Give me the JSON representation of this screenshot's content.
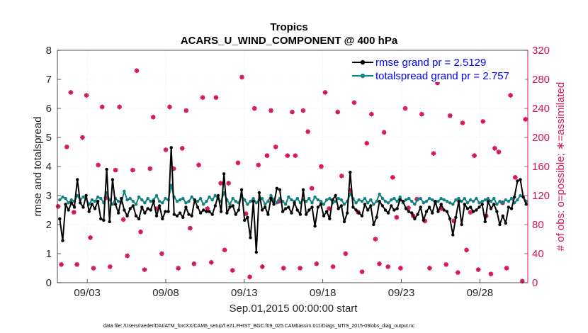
{
  "chart_data": {
    "type": "line",
    "title": "Tropics",
    "subtitle": "ACARS_U_WIND_COMPONENT @ 400 hPa",
    "xlabel": "Sep.01,2015 00:00:00 start",
    "ylabel_left": "rmse and totalspread",
    "ylabel_right": "# of obs: o=possible; ∗=assimilated",
    "footnote": "data file: /Users/raeder/DAI/ATM_forcXX/CAM6_setup/f.e21.FHIST_BGC.f09_025.CAM6assim.011/Diags_NTrS_2015-09/obs_diag_output.nc",
    "x_tick_labels": [
      "09/03",
      "09/08",
      "09/13",
      "09/18",
      "09/23",
      "09/28"
    ],
    "x_tick_days": [
      3,
      8,
      13,
      18,
      23,
      28
    ],
    "xlim_days": [
      1.1,
      31.05
    ],
    "ylim_left": [
      0,
      8
    ],
    "yticks_left": [
      "0",
      "1",
      "2",
      "3",
      "4",
      "5",
      "6",
      "7",
      "8"
    ],
    "ylim_right": [
      0,
      320
    ],
    "yticks_right": [
      "0",
      "40",
      "80",
      "120",
      "160",
      "200",
      "240",
      "280",
      "320"
    ],
    "legend_position": "top-right",
    "colors": {
      "rmse": "#000000",
      "spread": "#118080",
      "obs": "#d4145a"
    },
    "series": [
      {
        "name": "rmse grand pr = 2.5129",
        "axis": "left",
        "values": [
          2.2,
          1.45,
          2.7,
          2.5,
          2.75,
          2.6,
          3.55,
          2.75,
          2.6,
          3.0,
          2.45,
          2.7,
          2.55,
          2.8,
          2.2,
          2.15,
          3.9,
          2.1,
          3.55,
          2.7,
          2.4,
          2.9,
          2.5,
          2.3,
          2.55,
          2.65,
          2.3,
          2.2,
          2.6,
          2.4,
          2.55,
          2.5,
          2.8,
          2.3,
          2.65,
          2.2,
          2.45,
          2.45,
          4.65,
          2.35,
          2.3,
          2.4,
          2.25,
          2.6,
          2.35,
          2.3,
          2.85,
          2.6,
          2.4,
          2.5,
          2.45,
          2.45,
          2.35,
          2.65,
          3.0,
          2.45,
          3.75,
          2.4,
          2.6,
          2.65,
          2.35,
          2.5,
          3.2,
          2.15,
          2.25,
          1.55,
          2.8,
          1.05,
          3.1,
          2.5,
          2.6,
          2.35,
          2.9,
          2.7,
          3.25,
          3.2,
          2.45,
          2.55,
          2.6,
          2.4,
          2.75,
          2.5,
          2.35,
          3.2,
          2.35,
          2.5,
          2.6,
          1.95,
          2.6,
          2.7,
          2.3,
          2.45,
          2.2,
          2.85,
          3.0,
          2.55,
          2.65,
          2.1,
          2.4,
          3.8,
          2.6,
          2.5,
          2.4,
          2.3,
          2.7,
          2.5,
          2.65,
          2.0,
          2.25,
          2.8,
          2.65,
          2.5,
          2.4,
          2.65,
          2.5,
          2.55,
          2.85,
          2.8,
          2.55,
          2.45,
          2.4,
          2.2,
          2.35,
          2.6,
          2.15,
          2.45,
          2.6,
          2.4,
          2.8,
          2.45,
          2.7,
          2.5,
          2.45,
          2.2,
          1.65,
          2.25,
          2.8,
          2.0,
          2.7,
          2.55,
          2.6,
          2.45,
          2.5,
          2.6,
          2.7,
          2.1,
          2.8,
          2.55,
          2.7,
          2.45,
          2.0,
          2.3,
          2.05,
          2.6,
          2.55,
          2.95,
          3.5,
          3.55,
          2.95,
          2.7
        ]
      },
      {
        "name": "totalspread grand pr = 2.757",
        "axis": "left",
        "values": [
          2.85,
          2.95,
          2.9,
          2.75,
          2.85,
          2.8,
          3.0,
          2.85,
          2.95,
          2.9,
          2.7,
          2.85,
          2.8,
          2.95,
          2.9,
          2.75,
          3.1,
          2.85,
          2.7,
          2.9,
          2.8,
          2.75,
          3.15,
          2.85,
          2.9,
          2.8,
          2.7,
          2.95,
          2.85,
          2.75,
          2.9,
          2.8,
          2.85,
          3.0,
          2.8,
          2.75,
          2.9,
          2.85,
          3.35,
          2.95,
          2.8,
          2.85,
          2.9,
          2.75,
          2.8,
          2.95,
          2.85,
          2.8,
          2.9,
          2.7,
          2.8,
          2.95,
          2.85,
          3.0,
          2.9,
          2.8,
          3.1,
          2.85,
          2.7,
          2.9,
          2.8,
          2.75,
          3.0,
          2.85,
          2.7,
          2.8,
          2.9,
          2.75,
          2.85,
          2.9,
          2.7,
          2.8,
          3.0,
          2.85,
          2.75,
          2.9,
          2.8,
          2.7,
          2.95,
          2.85,
          2.8,
          2.9,
          2.75,
          2.85,
          2.8,
          2.9,
          2.75,
          2.95,
          2.85,
          2.8,
          2.7,
          2.85,
          2.9,
          2.75,
          2.8,
          2.9,
          2.85,
          2.7,
          2.8,
          3.05,
          2.9,
          2.75,
          2.85,
          2.8,
          2.9,
          2.75,
          2.85,
          2.7,
          2.8,
          3.05,
          2.9,
          2.8,
          2.75,
          2.85,
          2.9,
          2.8,
          2.95,
          2.75,
          2.85,
          2.9,
          2.8,
          2.7,
          2.85,
          2.9,
          2.75,
          2.8,
          2.9,
          2.85,
          2.75,
          2.8,
          2.9,
          2.85,
          2.8,
          2.75,
          2.7,
          2.85,
          2.9,
          2.8,
          2.9,
          2.75,
          2.85,
          2.8,
          2.9,
          2.75,
          2.8,
          2.85,
          2.9,
          2.8,
          2.9,
          2.7,
          2.8,
          2.75,
          2.85,
          2.8,
          2.9,
          2.75,
          2.85,
          3.0,
          2.95,
          2.8
        ]
      },
      {
        "name": "# obs possible/assimilated",
        "axis": "right",
        "style": "markers",
        "points": [
          [
            1.15,
            105
          ],
          [
            1.35,
            25
          ],
          [
            1.7,
            187
          ],
          [
            1.95,
            262
          ],
          [
            2.15,
            97
          ],
          [
            2.35,
            25
          ],
          [
            2.7,
            200
          ],
          [
            2.95,
            258
          ],
          [
            3.2,
            62
          ],
          [
            3.4,
            20
          ],
          [
            3.7,
            162
          ],
          [
            3.95,
            242
          ],
          [
            4.2,
            117
          ],
          [
            4.45,
            22
          ],
          [
            4.8,
            155
          ],
          [
            5.05,
            242
          ],
          [
            5.3,
            87
          ],
          [
            5.55,
            37
          ],
          [
            5.9,
            155
          ],
          [
            6.15,
            292
          ],
          [
            6.4,
            70
          ],
          [
            6.65,
            18
          ],
          [
            7.0,
            157
          ],
          [
            7.2,
            228
          ],
          [
            7.45,
            102
          ],
          [
            7.75,
            40
          ],
          [
            8.0,
            183
          ],
          [
            8.25,
            242
          ],
          [
            8.5,
            157
          ],
          [
            8.8,
            20
          ],
          [
            9.05,
            185
          ],
          [
            9.3,
            237
          ],
          [
            9.55,
            75
          ],
          [
            9.8,
            26
          ],
          [
            10.1,
            162
          ],
          [
            10.35,
            255
          ],
          [
            10.65,
            102
          ],
          [
            10.9,
            28
          ],
          [
            11.2,
            255
          ],
          [
            11.5,
            137
          ],
          [
            11.75,
            45
          ],
          [
            12.0,
            137
          ],
          [
            12.25,
            17
          ],
          [
            12.6,
            165
          ],
          [
            12.85,
            283
          ],
          [
            13.1,
            95
          ],
          [
            13.35,
            8
          ],
          [
            13.65,
            240
          ],
          [
            13.9,
            162
          ],
          [
            14.15,
            22
          ],
          [
            14.45,
            175
          ],
          [
            14.7,
            237
          ],
          [
            15.0,
            187
          ],
          [
            15.2,
            112
          ],
          [
            15.5,
            20
          ],
          [
            15.75,
            175
          ],
          [
            16.05,
            235
          ],
          [
            16.25,
            175
          ],
          [
            16.55,
            20
          ],
          [
            16.75,
            237
          ],
          [
            17.05,
            208
          ],
          [
            17.3,
            130
          ],
          [
            17.6,
            26
          ],
          [
            17.9,
            160
          ],
          [
            18.15,
            262
          ],
          [
            18.4,
            102
          ],
          [
            18.65,
            22
          ],
          [
            18.95,
            235
          ],
          [
            19.2,
            147
          ],
          [
            19.45,
            40
          ],
          [
            19.75,
            127
          ],
          [
            20.0,
            248
          ],
          [
            20.25,
            97
          ],
          [
            20.5,
            15
          ],
          [
            20.8,
            192
          ],
          [
            21.1,
            232
          ],
          [
            21.35,
            60
          ],
          [
            21.6,
            26
          ],
          [
            21.9,
            207
          ],
          [
            22.15,
            22
          ],
          [
            22.45,
            145
          ],
          [
            22.7,
            90
          ],
          [
            22.95,
            20
          ],
          [
            23.25,
            240
          ],
          [
            23.45,
            103
          ],
          [
            23.75,
            92
          ],
          [
            24.0,
            115
          ],
          [
            24.3,
            232
          ],
          [
            24.5,
            85
          ],
          [
            24.8,
            20
          ],
          [
            25.05,
            178
          ],
          [
            25.3,
            275
          ],
          [
            25.55,
            102
          ],
          [
            25.85,
            25
          ],
          [
            26.1,
            230
          ],
          [
            26.35,
            85
          ],
          [
            26.6,
            14
          ],
          [
            26.9,
            220
          ],
          [
            27.15,
            45
          ],
          [
            27.4,
            97
          ],
          [
            27.65,
            175
          ],
          [
            27.9,
            18
          ],
          [
            28.2,
            222
          ],
          [
            28.4,
            92
          ],
          [
            28.7,
            12
          ],
          [
            28.95,
            185
          ],
          [
            29.2,
            180
          ],
          [
            29.45,
            110
          ],
          [
            29.7,
            20
          ],
          [
            29.95,
            258
          ],
          [
            30.25,
            145
          ],
          [
            30.45,
            287
          ],
          [
            30.7,
            2
          ],
          [
            30.9,
            225
          ]
        ]
      }
    ]
  }
}
